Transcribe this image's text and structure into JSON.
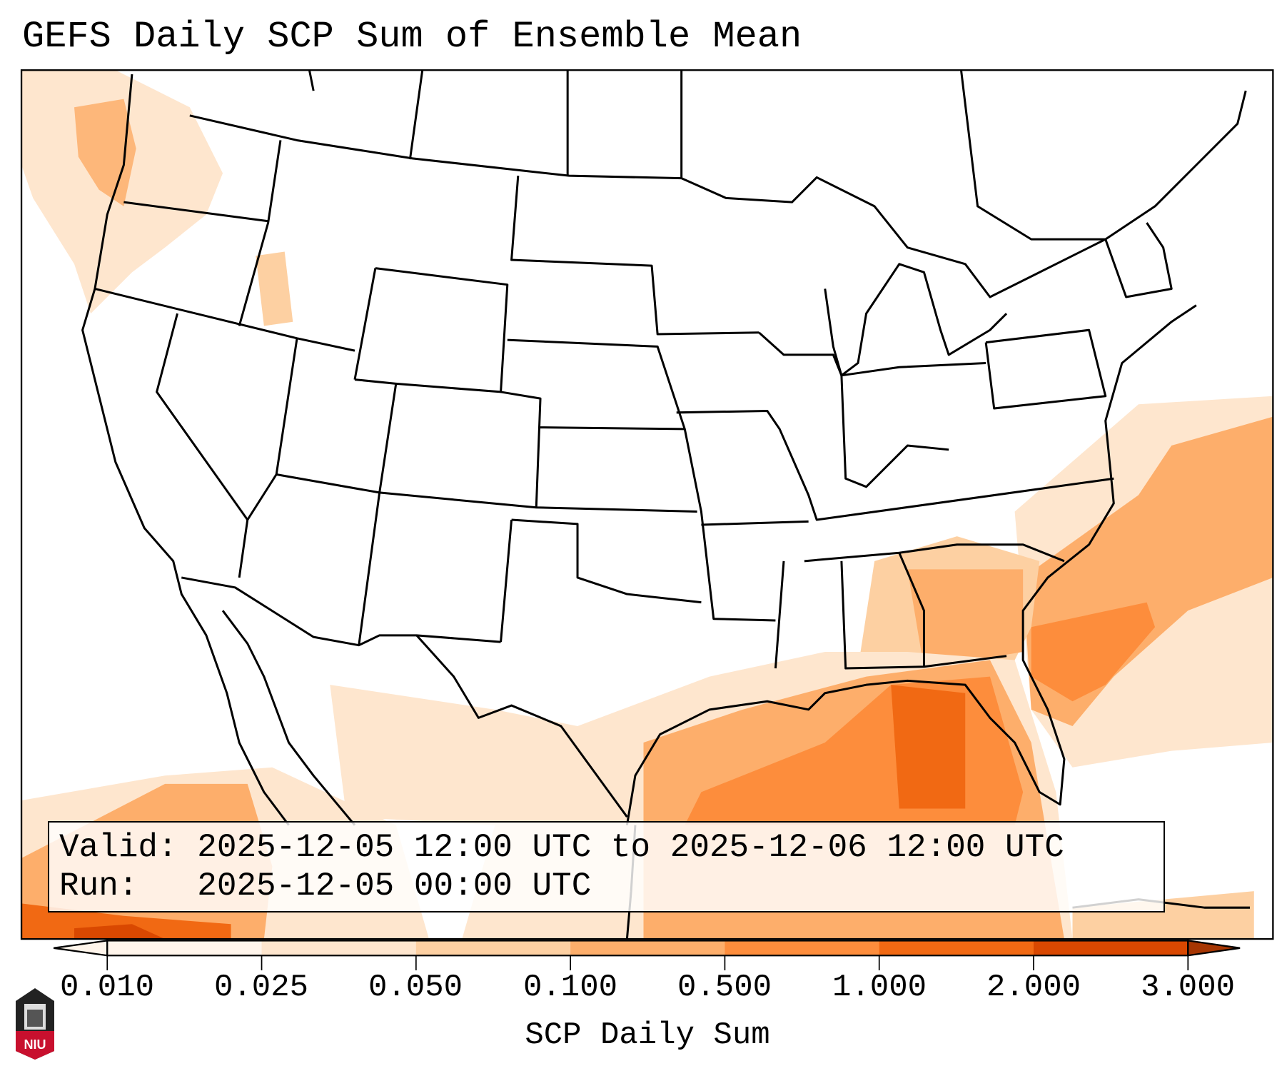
{
  "title": "GEFS Daily SCP Sum of Ensemble Mean",
  "info": {
    "valid_line": "Valid: 2025-12-05 12:00 UTC to 2025-12-06 12:00 UTC",
    "run_line": "Run:   2025-12-05 00:00 UTC"
  },
  "colorbar": {
    "label": "SCP Daily Sum",
    "ticks": [
      "0.010",
      "0.025",
      "0.050",
      "0.100",
      "0.500",
      "1.000",
      "2.000",
      "3.000"
    ],
    "colors": [
      "#fff5eb",
      "#fee6ce",
      "#fdd0a2",
      "#fdae6b",
      "#fd8d3c",
      "#f16913",
      "#d94801",
      "#a63603"
    ],
    "extend": "both"
  },
  "logo": {
    "text": "NIU"
  }
}
